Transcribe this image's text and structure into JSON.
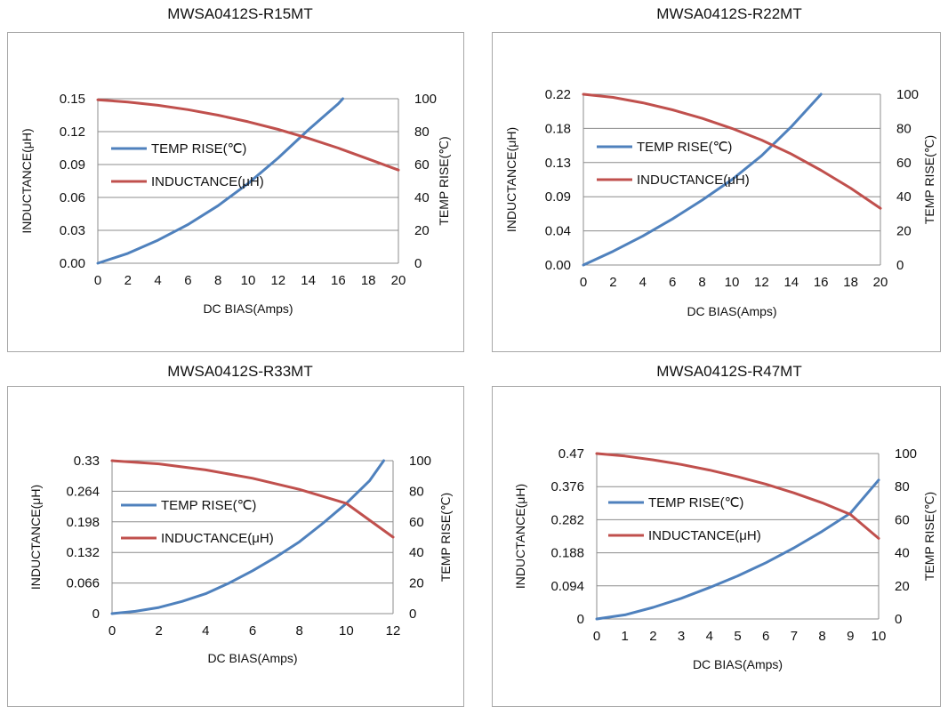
{
  "chart_data": [
    {
      "type": "line",
      "title": "MWSA0412S-R15MT",
      "xlabel": "DC  BIAS(Amps)",
      "ylabel": "INDUCTANCE(μH)",
      "y2label": "TEMP RISE(℃)",
      "xlim": [
        0,
        20
      ],
      "ylim": [
        0,
        0.15
      ],
      "y2lim": [
        0,
        100
      ],
      "x_ticks": [
        0,
        2,
        4,
        6,
        8,
        10,
        12,
        14,
        16,
        18,
        20
      ],
      "y_tick_labels": [
        "0.00",
        "0.03",
        "0.06",
        "0.09",
        "0.12",
        "0.15"
      ],
      "y2_ticks": [
        0,
        20,
        40,
        60,
        80,
        100
      ],
      "grid": true,
      "legend": "upper-left",
      "series": [
        {
          "name": "TEMP RISE(℃)",
          "axis": "right",
          "color": "#4f81bd",
          "x": [
            0,
            2,
            4,
            6,
            8,
            10,
            12,
            14,
            16,
            16.3
          ],
          "values": [
            0,
            6,
            14,
            23.5,
            35,
            48.5,
            64,
            81,
            97,
            100
          ]
        },
        {
          "name": "INDUCTANCE(μH)",
          "axis": "left",
          "color": "#c0504d",
          "x": [
            0,
            2,
            4,
            6,
            8,
            10,
            12,
            14,
            16,
            18,
            20
          ],
          "values": [
            0.149,
            0.147,
            0.144,
            0.14,
            0.135,
            0.129,
            0.122,
            0.114,
            0.105,
            0.095,
            0.085
          ]
        }
      ]
    },
    {
      "type": "line",
      "title": "MWSA0412S-R22MT",
      "xlabel": "DC  BIAS(Amps)",
      "ylabel": "INDUCTANCE(μH)",
      "y2label": "TEMP RISE(℃)",
      "xlim": [
        0,
        20
      ],
      "ylim": [
        0,
        0.22
      ],
      "y2lim": [
        0,
        100
      ],
      "x_ticks": [
        0,
        2,
        4,
        6,
        8,
        10,
        12,
        14,
        16,
        18,
        20
      ],
      "y_tick_labels": [
        "0.00",
        "0.04",
        "0.09",
        "0.13",
        "0.18",
        "0.22"
      ],
      "y2_ticks": [
        0,
        20,
        40,
        60,
        80,
        100
      ],
      "grid": true,
      "legend": "upper-left",
      "series": [
        {
          "name": "TEMP RISE(℃)",
          "axis": "right",
          "color": "#4f81bd",
          "x": [
            0,
            2,
            4,
            6,
            8,
            10,
            12,
            14,
            16
          ],
          "values": [
            0,
            8,
            17,
            27,
            38,
            50,
            64,
            81,
            100
          ]
        },
        {
          "name": "INDUCTANCE(μH)",
          "axis": "left",
          "color": "#c0504d",
          "x": [
            0,
            2,
            4,
            6,
            8,
            10,
            12,
            14,
            16,
            18,
            20
          ],
          "values": [
            0.22,
            0.216,
            0.209,
            0.2,
            0.189,
            0.176,
            0.161,
            0.143,
            0.122,
            0.099,
            0.073
          ]
        }
      ]
    },
    {
      "type": "line",
      "title": "MWSA0412S-R33MT",
      "xlabel": "DC  BIAS(Amps)",
      "ylabel": "INDUCTANCE(μH)",
      "y2label": "TEMP RISE(℃)",
      "xlim": [
        0,
        12
      ],
      "ylim": [
        0,
        0.33
      ],
      "y2lim": [
        0,
        100
      ],
      "x_ticks": [
        0,
        2,
        4,
        6,
        8,
        10,
        12
      ],
      "y_tick_labels": [
        "0",
        "0.066",
        "0.132",
        "0.198",
        "0.264",
        "0.33"
      ],
      "y2_ticks": [
        0,
        20,
        40,
        60,
        80,
        100
      ],
      "grid": true,
      "legend": "upper-left",
      "series": [
        {
          "name": "TEMP RISE(℃)",
          "axis": "right",
          "color": "#4f81bd",
          "x": [
            0,
            1,
            2,
            3,
            4,
            5,
            6,
            7,
            8,
            9,
            10,
            11,
            11.6
          ],
          "values": [
            0,
            1.5,
            4,
            8,
            13,
            20,
            28,
            37,
            47,
            59,
            72,
            87,
            100
          ]
        },
        {
          "name": "INDUCTANCE(μH)",
          "axis": "left",
          "color": "#c0504d",
          "x": [
            0,
            2,
            4,
            6,
            8,
            10,
            12
          ],
          "values": [
            0.33,
            0.323,
            0.31,
            0.292,
            0.268,
            0.238,
            0.165
          ]
        }
      ]
    },
    {
      "type": "line",
      "title": "MWSA0412S-R47MT",
      "xlabel": "DC  BIAS(Amps)",
      "ylabel": "INDUCTANCE(μH)",
      "y2label": "TEMP RISE(℃)",
      "xlim": [
        0,
        10
      ],
      "ylim": [
        0,
        0.47
      ],
      "y2lim": [
        0,
        100
      ],
      "x_ticks": [
        0,
        1,
        2,
        3,
        4,
        5,
        6,
        7,
        8,
        9,
        10
      ],
      "y_tick_labels": [
        "0",
        "0.094",
        "0.188",
        "0.282",
        "0.376",
        "0.47"
      ],
      "y2_ticks": [
        0,
        20,
        40,
        60,
        80,
        100
      ],
      "grid": true,
      "legend": "upper-left",
      "series": [
        {
          "name": "TEMP RISE(℃)",
          "axis": "right",
          "color": "#4f81bd",
          "x": [
            0,
            1,
            2,
            3,
            4,
            5,
            6,
            7,
            8,
            9,
            10
          ],
          "values": [
            0,
            2.5,
            7,
            12.5,
            19,
            26,
            34,
            43,
            53,
            64,
            84
          ]
        },
        {
          "name": "INDUCTANCE(μH)",
          "axis": "left",
          "color": "#c0504d",
          "x": [
            0,
            1,
            2,
            3,
            4,
            5,
            6,
            7,
            8,
            9,
            10
          ],
          "values": [
            0.47,
            0.463,
            0.452,
            0.439,
            0.423,
            0.404,
            0.383,
            0.358,
            0.33,
            0.297,
            0.229
          ]
        }
      ]
    }
  ]
}
